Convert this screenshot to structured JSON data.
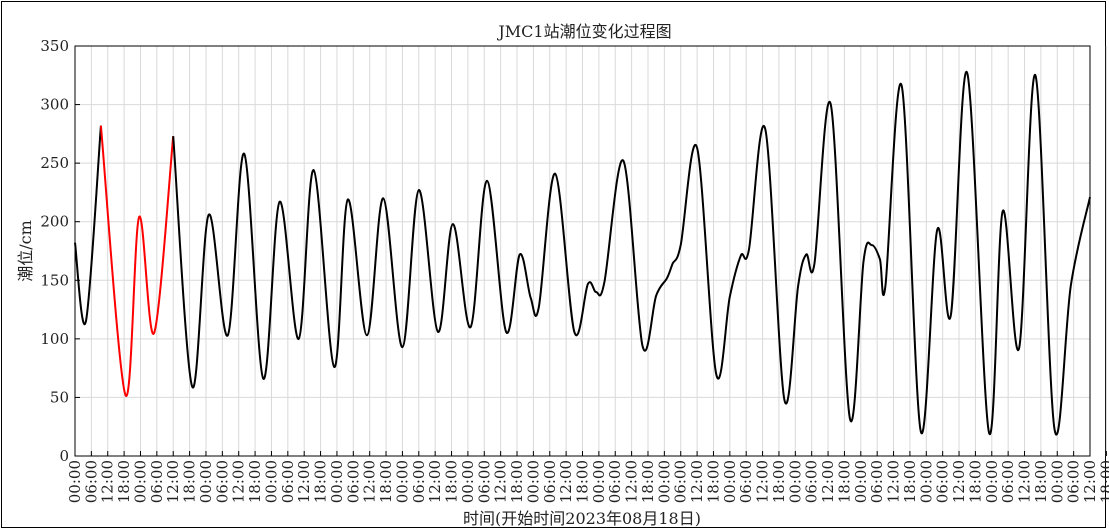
{
  "chart_data": {
    "type": "line",
    "title": "JMC1站潮位变化过程图",
    "xlabel": "时间(开始时间2023年08月18日)",
    "ylabel": "潮位/cm",
    "ylim": [
      0,
      350
    ],
    "yticks": [
      0,
      50,
      100,
      150,
      200,
      250,
      300,
      350
    ],
    "x_unit": "hours since 2023-08-18 00:00",
    "xlim": [
      0,
      372
    ],
    "xtick_labels": [
      "00:00",
      "06:00",
      "12:00",
      "18:00",
      "00:00",
      "06:00",
      "12:00",
      "18:00",
      "00:00",
      "06:00",
      "12:00",
      "18:00",
      "00:00",
      "06:00",
      "12:00",
      "18:00",
      "00:00",
      "06:00",
      "12:00",
      "18:00",
      "00:00",
      "06:00",
      "12:00",
      "18:00",
      "00:00",
      "06:00",
      "12:00",
      "18:00",
      "00:00",
      "06:00",
      "12:00",
      "18:00",
      "00:00",
      "06:00",
      "12:00",
      "18:00",
      "00:00",
      "06:00",
      "12:00",
      "18:00",
      "00:00",
      "06:00",
      "12:00",
      "18:00",
      "00:00",
      "06:00",
      "12:00",
      "18:00",
      "00:00",
      "06:00",
      "12:00",
      "18:00",
      "00:00",
      "06:00",
      "12:00",
      "18:00",
      "00:00",
      "06:00",
      "12:00",
      "18:00",
      "00:00",
      "06:00",
      "12:00",
      "18:00"
    ],
    "grid": true,
    "legend": false,
    "series": [
      {
        "color": "#000000",
        "points": [
          [
            0,
            182
          ],
          [
            4,
            115
          ],
          [
            9.5,
            282
          ]
        ]
      },
      {
        "color": "#ff0000",
        "points": [
          [
            9.5,
            282
          ],
          [
            18.5,
            52
          ],
          [
            23.5,
            204
          ],
          [
            29,
            105
          ],
          [
            36,
            273
          ]
        ]
      },
      {
        "color": "#000000",
        "points": [
          [
            36,
            273
          ],
          [
            43,
            59
          ],
          [
            49,
            206
          ],
          [
            56,
            103
          ],
          [
            62,
            258
          ],
          [
            69,
            66
          ],
          [
            75,
            217
          ],
          [
            82,
            100
          ],
          [
            87.5,
            244
          ],
          [
            95,
            76
          ],
          [
            100,
            219
          ],
          [
            107,
            103
          ],
          [
            113,
            220
          ],
          [
            120,
            93
          ],
          [
            126,
            227
          ],
          [
            133,
            106
          ],
          [
            138.5,
            198
          ],
          [
            145,
            110
          ],
          [
            151,
            235
          ],
          [
            158,
            106
          ],
          [
            163,
            172
          ],
          [
            167,
            135
          ],
          [
            170,
            127
          ],
          [
            176,
            241
          ],
          [
            183,
            106
          ],
          [
            188,
            147
          ],
          [
            191,
            140
          ],
          [
            194,
            148
          ],
          [
            201,
            252
          ],
          [
            208,
            94
          ],
          [
            213,
            137
          ],
          [
            217,
            152
          ],
          [
            219,
            164
          ],
          [
            222,
            180
          ],
          [
            228,
            263
          ],
          [
            235,
            70
          ],
          [
            240,
            136
          ],
          [
            244,
            171
          ],
          [
            247,
            176
          ],
          [
            253,
            279
          ],
          [
            260,
            48
          ],
          [
            265,
            145
          ],
          [
            268,
            172
          ],
          [
            271,
            164
          ],
          [
            277,
            300
          ],
          [
            284,
            32
          ],
          [
            289,
            166
          ],
          [
            292,
            180
          ],
          [
            295,
            168
          ],
          [
            297,
            145
          ],
          [
            303,
            316
          ],
          [
            310,
            21
          ],
          [
            316,
            193
          ],
          [
            321,
            120
          ],
          [
            327,
            327
          ],
          [
            335,
            20
          ],
          [
            340,
            209
          ],
          [
            346,
            92
          ],
          [
            352,
            325
          ],
          [
            359,
            23
          ],
          [
            365,
            146
          ],
          [
            372,
            221
          ]
        ]
      }
    ]
  }
}
